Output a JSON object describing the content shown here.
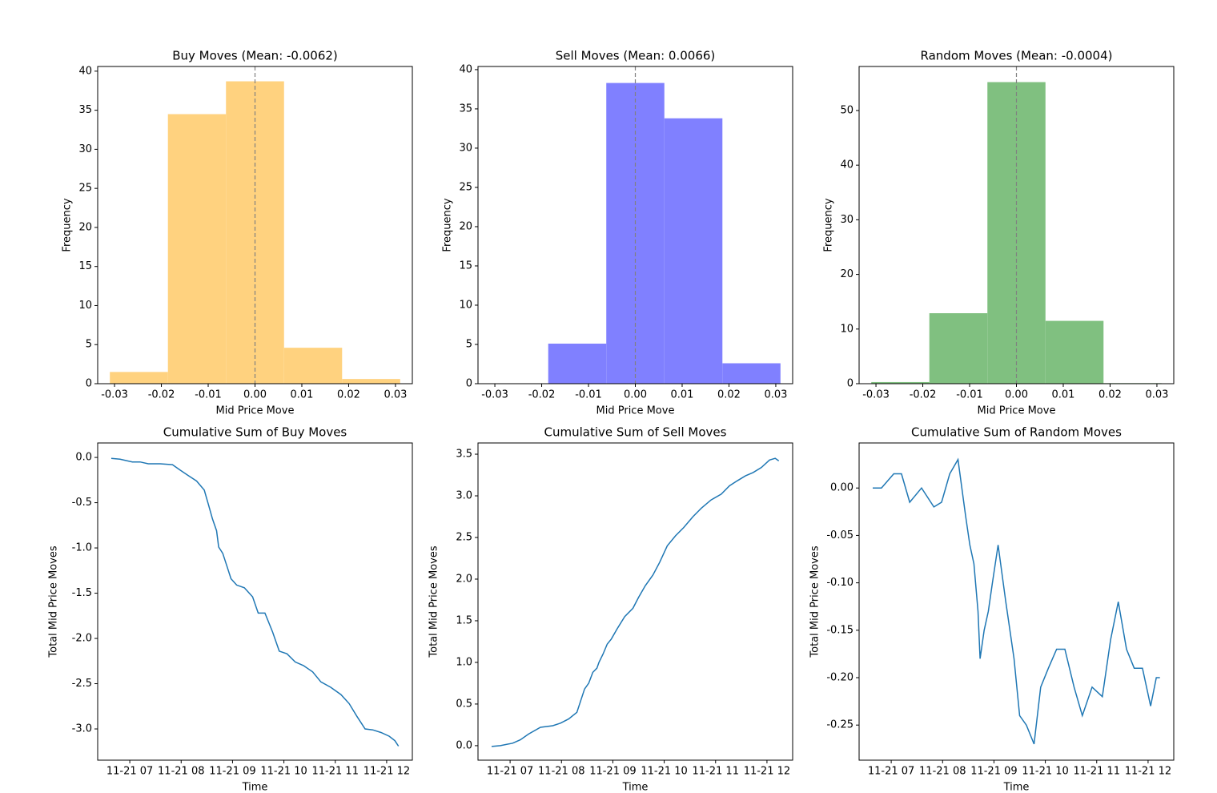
{
  "chart_data": [
    {
      "type": "histogram",
      "title": "Buy Moves (Mean: -0.0062)",
      "x_label": "Mid Price Move",
      "y_label": "Frequency",
      "bins": [
        -0.031,
        -0.0186,
        -0.0062,
        0.0062,
        0.0186,
        0.031
      ],
      "values": [
        1.5,
        34.5,
        38.7,
        4.6,
        0.6
      ],
      "color": "#ffd27f",
      "vline": 0,
      "vline_color": "#808080",
      "xlim": [
        -0.0336,
        0.0336
      ],
      "xticks": [
        -0.03,
        -0.02,
        -0.01,
        {
          "value": 0,
          "label": "0.00"
        },
        0.01,
        0.02,
        0.03
      ],
      "ylim": [
        0,
        40.6
      ],
      "yticks": [
        0,
        5,
        10,
        15,
        20,
        25,
        30,
        35,
        40
      ]
    },
    {
      "type": "histogram",
      "title": "Sell Moves (Mean: 0.0066)",
      "x_label": "Mid Price Move",
      "y_label": "Frequency",
      "bins": [
        -0.031,
        -0.0186,
        -0.0062,
        0.0062,
        0.0186,
        0.031
      ],
      "values": [
        0.05,
        5.1,
        38.3,
        33.8,
        2.6
      ],
      "color": "#8080ff",
      "vline": 0,
      "vline_color": "#808080",
      "xlim": [
        -0.0336,
        0.0336
      ],
      "xticks": [
        -0.03,
        -0.02,
        -0.01,
        {
          "value": 0,
          "label": "0.00"
        },
        0.01,
        0.02,
        0.03
      ],
      "ylim": [
        0,
        40.4
      ],
      "yticks": [
        0,
        5,
        10,
        15,
        20,
        25,
        30,
        35,
        40
      ]
    },
    {
      "type": "histogram",
      "title": "Random Moves (Mean: -0.0004)",
      "x_label": "Mid Price Move",
      "y_label": "Frequency",
      "bins": [
        -0.031,
        -0.0186,
        -0.0062,
        0.0062,
        0.0186,
        0.031
      ],
      "values": [
        0.3,
        12.9,
        55.2,
        11.5,
        0.1
      ],
      "color": "#80c080",
      "vline": 0,
      "vline_color": "#808080",
      "xlim": [
        -0.0336,
        0.0336
      ],
      "xticks": [
        -0.03,
        -0.02,
        -0.01,
        {
          "value": 0,
          "label": "0.00"
        },
        0.01,
        0.02,
        0.03
      ],
      "ylim": [
        0,
        58.06
      ],
      "yticks": [
        0,
        10,
        20,
        30,
        40,
        50
      ]
    },
    {
      "type": "line",
      "title": "Cumulative Sum of Buy Moves",
      "x_label": "Time",
      "y_label": "Total Mid Price Moves",
      "color": "#1f77b4",
      "x": [
        6.64,
        6.81,
        7.05,
        7.2,
        7.36,
        7.59,
        7.83,
        7.98,
        8.14,
        8.3,
        8.45,
        8.53,
        8.61,
        8.69,
        8.73,
        8.81,
        8.89,
        8.97,
        9.08,
        9.23,
        9.39,
        9.5,
        9.63,
        9.78,
        9.91,
        10.06,
        10.22,
        10.38,
        10.56,
        10.72,
        10.91,
        11.11,
        11.27,
        11.42,
        11.58,
        11.73,
        11.89,
        12.05,
        12.16,
        12.23
      ],
      "values": [
        -0.01,
        -0.02,
        -0.05,
        -0.05,
        -0.07,
        -0.07,
        -0.08,
        -0.14,
        -0.2,
        -0.26,
        -0.36,
        -0.52,
        -0.68,
        -0.81,
        -0.99,
        -1.06,
        -1.2,
        -1.34,
        -1.41,
        -1.44,
        -1.54,
        -1.72,
        -1.72,
        -1.93,
        -2.14,
        -2.17,
        -2.26,
        -2.3,
        -2.37,
        -2.48,
        -2.54,
        -2.62,
        -2.72,
        -2.86,
        -3.0,
        -3.01,
        -3.04,
        -3.08,
        -3.13,
        -3.19
      ],
      "xlim": [
        6.375,
        12.5
      ],
      "xticks": [
        {
          "value": 7,
          "label": "11-21 07"
        },
        {
          "value": 8,
          "label": "11-21 08"
        },
        {
          "value": 9,
          "label": "11-21 09"
        },
        {
          "value": 10,
          "label": "11-21 10"
        },
        {
          "value": 11,
          "label": "11-21 11"
        },
        {
          "value": 12,
          "label": "11-21 12"
        }
      ],
      "ylim": [
        -3.345,
        0.16
      ],
      "yticks": [
        {
          "value": 0,
          "label": "0.0"
        },
        -0.5,
        {
          "value": -1,
          "label": "-1.0"
        },
        -1.5,
        {
          "value": -2,
          "label": "-2.0"
        },
        -2.5,
        {
          "value": -3,
          "label": "-3.0"
        }
      ]
    },
    {
      "type": "line",
      "title": "Cumulative Sum of Sell Moves",
      "x_label": "Time",
      "y_label": "Total Mid Price Moves",
      "color": "#1f77b4",
      "x": [
        6.64,
        6.81,
        7.05,
        7.2,
        7.36,
        7.59,
        7.83,
        7.98,
        8.14,
        8.3,
        8.45,
        8.53,
        8.61,
        8.69,
        8.73,
        8.81,
        8.89,
        8.97,
        9.08,
        9.23,
        9.39,
        9.5,
        9.63,
        9.78,
        9.91,
        10.06,
        10.22,
        10.38,
        10.56,
        10.72,
        10.91,
        11.11,
        11.27,
        11.42,
        11.58,
        11.73,
        11.89,
        12.05,
        12.16,
        12.23
      ],
      "values": [
        -0.01,
        0.0,
        0.03,
        0.07,
        0.14,
        0.22,
        0.24,
        0.27,
        0.32,
        0.4,
        0.68,
        0.75,
        0.88,
        0.93,
        1.0,
        1.1,
        1.22,
        1.28,
        1.4,
        1.55,
        1.65,
        1.78,
        1.92,
        2.05,
        2.2,
        2.4,
        2.52,
        2.62,
        2.75,
        2.85,
        2.95,
        3.02,
        3.12,
        3.18,
        3.24,
        3.28,
        3.34,
        3.43,
        3.45,
        3.42
      ],
      "xlim": [
        6.375,
        12.5
      ],
      "xticks": [
        {
          "value": 7,
          "label": "11-21 07"
        },
        {
          "value": 8,
          "label": "11-21 08"
        },
        {
          "value": 9,
          "label": "11-21 09"
        },
        {
          "value": 10,
          "label": "11-21 10"
        },
        {
          "value": 11,
          "label": "11-21 11"
        },
        {
          "value": 12,
          "label": "11-21 12"
        }
      ],
      "ylim": [
        -0.174,
        3.635
      ],
      "yticks": [
        {
          "value": 0,
          "label": "0.0"
        },
        0.5,
        {
          "value": 1,
          "label": "1.0"
        },
        1.5,
        {
          "value": 2,
          "label": "2.0"
        },
        2.5,
        {
          "value": 3,
          "label": "3.0"
        },
        3.5
      ]
    },
    {
      "type": "line",
      "title": "Cumulative Sum of Random Moves",
      "x_label": "Time",
      "y_label": "Total Mid Price Moves",
      "color": "#1f77b4",
      "x": [
        6.64,
        6.81,
        7.05,
        7.2,
        7.36,
        7.59,
        7.83,
        7.98,
        8.14,
        8.3,
        8.45,
        8.53,
        8.61,
        8.69,
        8.73,
        8.81,
        8.89,
        8.97,
        9.08,
        9.23,
        9.39,
        9.5,
        9.63,
        9.78,
        9.91,
        10.06,
        10.22,
        10.38,
        10.56,
        10.72,
        10.91,
        11.11,
        11.27,
        11.42,
        11.58,
        11.73,
        11.89,
        12.05,
        12.16,
        12.23
      ],
      "values": [
        0.0,
        0.0,
        0.015,
        0.015,
        -0.015,
        0.0,
        -0.02,
        -0.015,
        0.015,
        0.03,
        -0.03,
        -0.06,
        -0.08,
        -0.13,
        -0.18,
        -0.15,
        -0.13,
        -0.1,
        -0.06,
        -0.12,
        -0.18,
        -0.24,
        -0.25,
        -0.27,
        -0.21,
        -0.19,
        -0.17,
        -0.17,
        -0.21,
        -0.24,
        -0.21,
        -0.22,
        -0.16,
        -0.12,
        -0.17,
        -0.19,
        -0.19,
        -0.23,
        -0.2,
        -0.2
      ],
      "xlim": [
        6.375,
        12.5
      ],
      "xticks": [
        {
          "value": 7,
          "label": "11-21 07"
        },
        {
          "value": 8,
          "label": "11-21 08"
        },
        {
          "value": 9,
          "label": "11-21 09"
        },
        {
          "value": 10,
          "label": "11-21 10"
        },
        {
          "value": 11,
          "label": "11-21 11"
        },
        {
          "value": 12,
          "label": "11-21 12"
        }
      ],
      "ylim": [
        -0.287,
        0.0475
      ],
      "yticks": [
        {
          "value": 0,
          "label": "0.00"
        },
        -0.05,
        {
          "value": -0.1,
          "label": "-0.10"
        },
        -0.15,
        {
          "value": -0.2,
          "label": "-0.20"
        },
        -0.25
      ]
    }
  ]
}
